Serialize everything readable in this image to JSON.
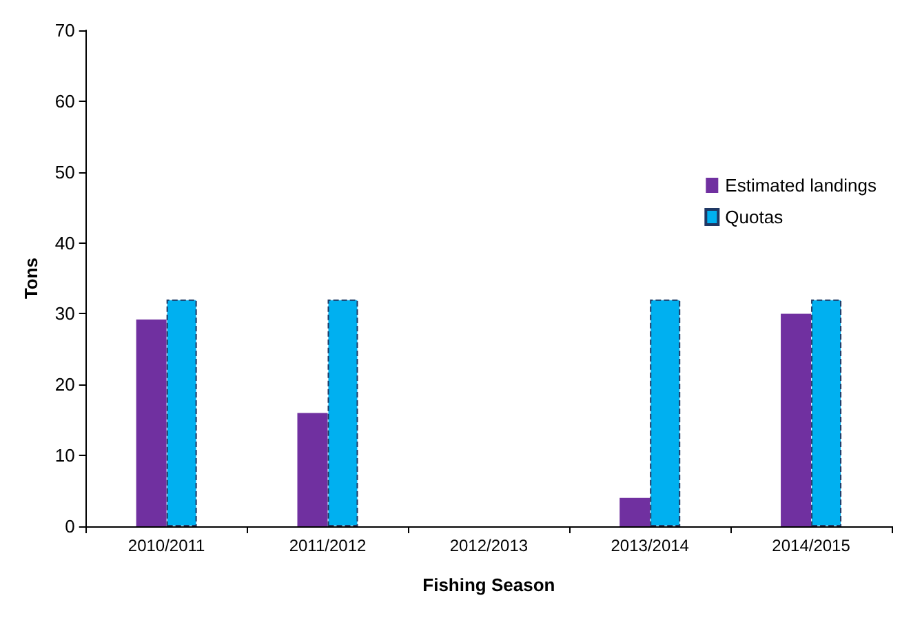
{
  "chart_data": {
    "type": "bar",
    "xlabel": "Fishing Season",
    "ylabel": "Tons",
    "categories": [
      "2010/2011",
      "2011/2012",
      "2012/2013",
      "2013/2014",
      "2014/2015"
    ],
    "series": [
      {
        "name": "Estimated landings",
        "color": "#7030a0",
        "values": [
          29.2,
          16,
          null,
          4,
          30
        ]
      },
      {
        "name": "Quotas",
        "color": "#00b0f0",
        "values": [
          32,
          32,
          null,
          32,
          32
        ],
        "line_style": "dashed"
      }
    ],
    "ylim": [
      0,
      70
    ],
    "yticks": [
      0,
      10,
      20,
      30,
      40,
      50,
      60,
      70
    ],
    "grid": false,
    "legend": "right"
  }
}
